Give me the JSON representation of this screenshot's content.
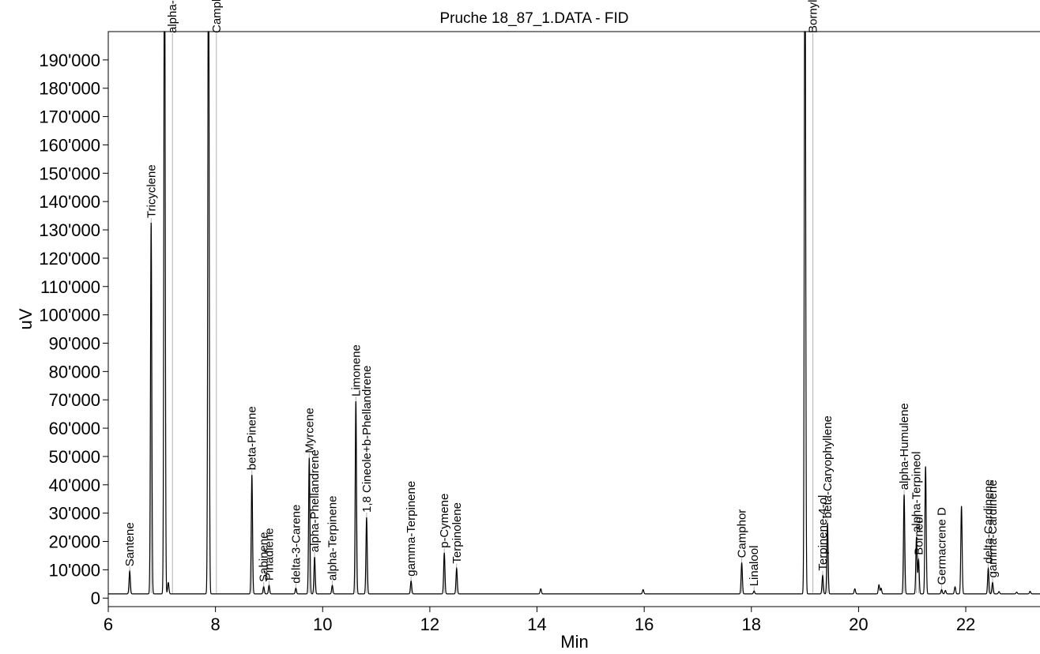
{
  "chart_data": {
    "type": "line",
    "title": "Pruche 18_87_1.DATA - FID",
    "xlabel": "Min",
    "ylabel": "uV",
    "xlim": [
      6,
      23.4
    ],
    "ylim": [
      -3000,
      200000
    ],
    "x_ticks": [
      6,
      8,
      10,
      12,
      14,
      16,
      18,
      20,
      22
    ],
    "x_tick_labels": [
      "6",
      "8",
      "10",
      "12",
      "14",
      "16",
      "18",
      "20",
      "22"
    ],
    "y_ticks": [
      0,
      10000,
      20000,
      30000,
      40000,
      50000,
      60000,
      70000,
      80000,
      90000,
      100000,
      110000,
      120000,
      130000,
      140000,
      150000,
      160000,
      170000,
      180000,
      190000
    ],
    "y_tick_labels": [
      "0",
      "10'000",
      "20'000",
      "30'000",
      "40'000",
      "50'000",
      "60'000",
      "70'000",
      "80'000",
      "90'000",
      "100'000",
      "110'000",
      "120'000",
      "130'000",
      "140'000",
      "150'000",
      "160'000",
      "170'000",
      "180'000",
      "190'000"
    ],
    "grid": false,
    "baseline": 1500,
    "peaks": [
      {
        "label": "Santene",
        "rt": 6.4,
        "height": 8000
      },
      {
        "label": "Tricyclene",
        "rt": 6.8,
        "height": 131000
      },
      {
        "label": "alpha-Pinene",
        "rt": 7.05,
        "height": 260000
      },
      {
        "label": "Camphene",
        "rt": 7.87,
        "height": 260000
      },
      {
        "label": "beta-Pinene",
        "rt": 8.68,
        "height": 42000
      },
      {
        "label": "Sabinene",
        "rt": 8.9,
        "height": 2500
      },
      {
        "label": "Pinadiene",
        "rt": 9.0,
        "height": 3000
      },
      {
        "label": "delta-3-Carene",
        "rt": 9.5,
        "height": 2000
      },
      {
        "label": "Myrcene",
        "rt": 9.75,
        "height": 48000
      },
      {
        "label": "alpha-Phellandrene",
        "rt": 9.85,
        "height": 13000
      },
      {
        "label": "alpha-Terpinene",
        "rt": 10.18,
        "height": 3000
      },
      {
        "label": "Limonene",
        "rt": 10.62,
        "height": 68000
      },
      {
        "label": "1,8 Cineole+b-Phellandrene",
        "rt": 10.82,
        "height": 27000
      },
      {
        "label": "gamma-Terpinene",
        "rt": 11.65,
        "height": 4500
      },
      {
        "label": "p-Cymene",
        "rt": 12.27,
        "height": 14500
      },
      {
        "label": "Terpinolene",
        "rt": 12.5,
        "height": 9000
      },
      {
        "label": "Camphor",
        "rt": 17.82,
        "height": 11000
      },
      {
        "label": "Linalool",
        "rt": 18.05,
        "height": 1000
      },
      {
        "label": "Bornyl Acetate",
        "rt": 19.0,
        "height": 260000
      },
      {
        "label": "Terpinene-4-ol",
        "rt": 19.33,
        "height": 6500
      },
      {
        "label": "beta-Caryophyllene",
        "rt": 19.42,
        "height": 25000
      },
      {
        "label": "alpha-Humulene",
        "rt": 20.85,
        "height": 35000
      },
      {
        "label": "alpha-Terpineol",
        "rt": 21.08,
        "height": 20000
      },
      {
        "label": "Borneol",
        "rt": 21.12,
        "height": 12000
      },
      {
        "label": "Germacrene D",
        "rt": 21.55,
        "height": 1500
      },
      {
        "label": "delta-Cardinene",
        "rt": 22.42,
        "height": 9000
      },
      {
        "label": "gamma-Cardinene",
        "rt": 22.5,
        "height": 4000
      }
    ],
    "unlabeled_peaks": [
      {
        "rt": 7.12,
        "height": 4000
      },
      {
        "rt": 14.07,
        "height": 1800
      },
      {
        "rt": 15.98,
        "height": 1500
      },
      {
        "rt": 19.93,
        "height": 1800
      },
      {
        "rt": 20.38,
        "height": 3200
      },
      {
        "rt": 20.42,
        "height": 2000
      },
      {
        "rt": 21.25,
        "height": 45000
      },
      {
        "rt": 21.62,
        "height": 1200
      },
      {
        "rt": 21.8,
        "height": 2500
      },
      {
        "rt": 21.92,
        "height": 31000
      },
      {
        "rt": 22.62,
        "height": 800
      },
      {
        "rt": 22.95,
        "height": 600
      },
      {
        "rt": 23.2,
        "height": 900
      }
    ]
  }
}
